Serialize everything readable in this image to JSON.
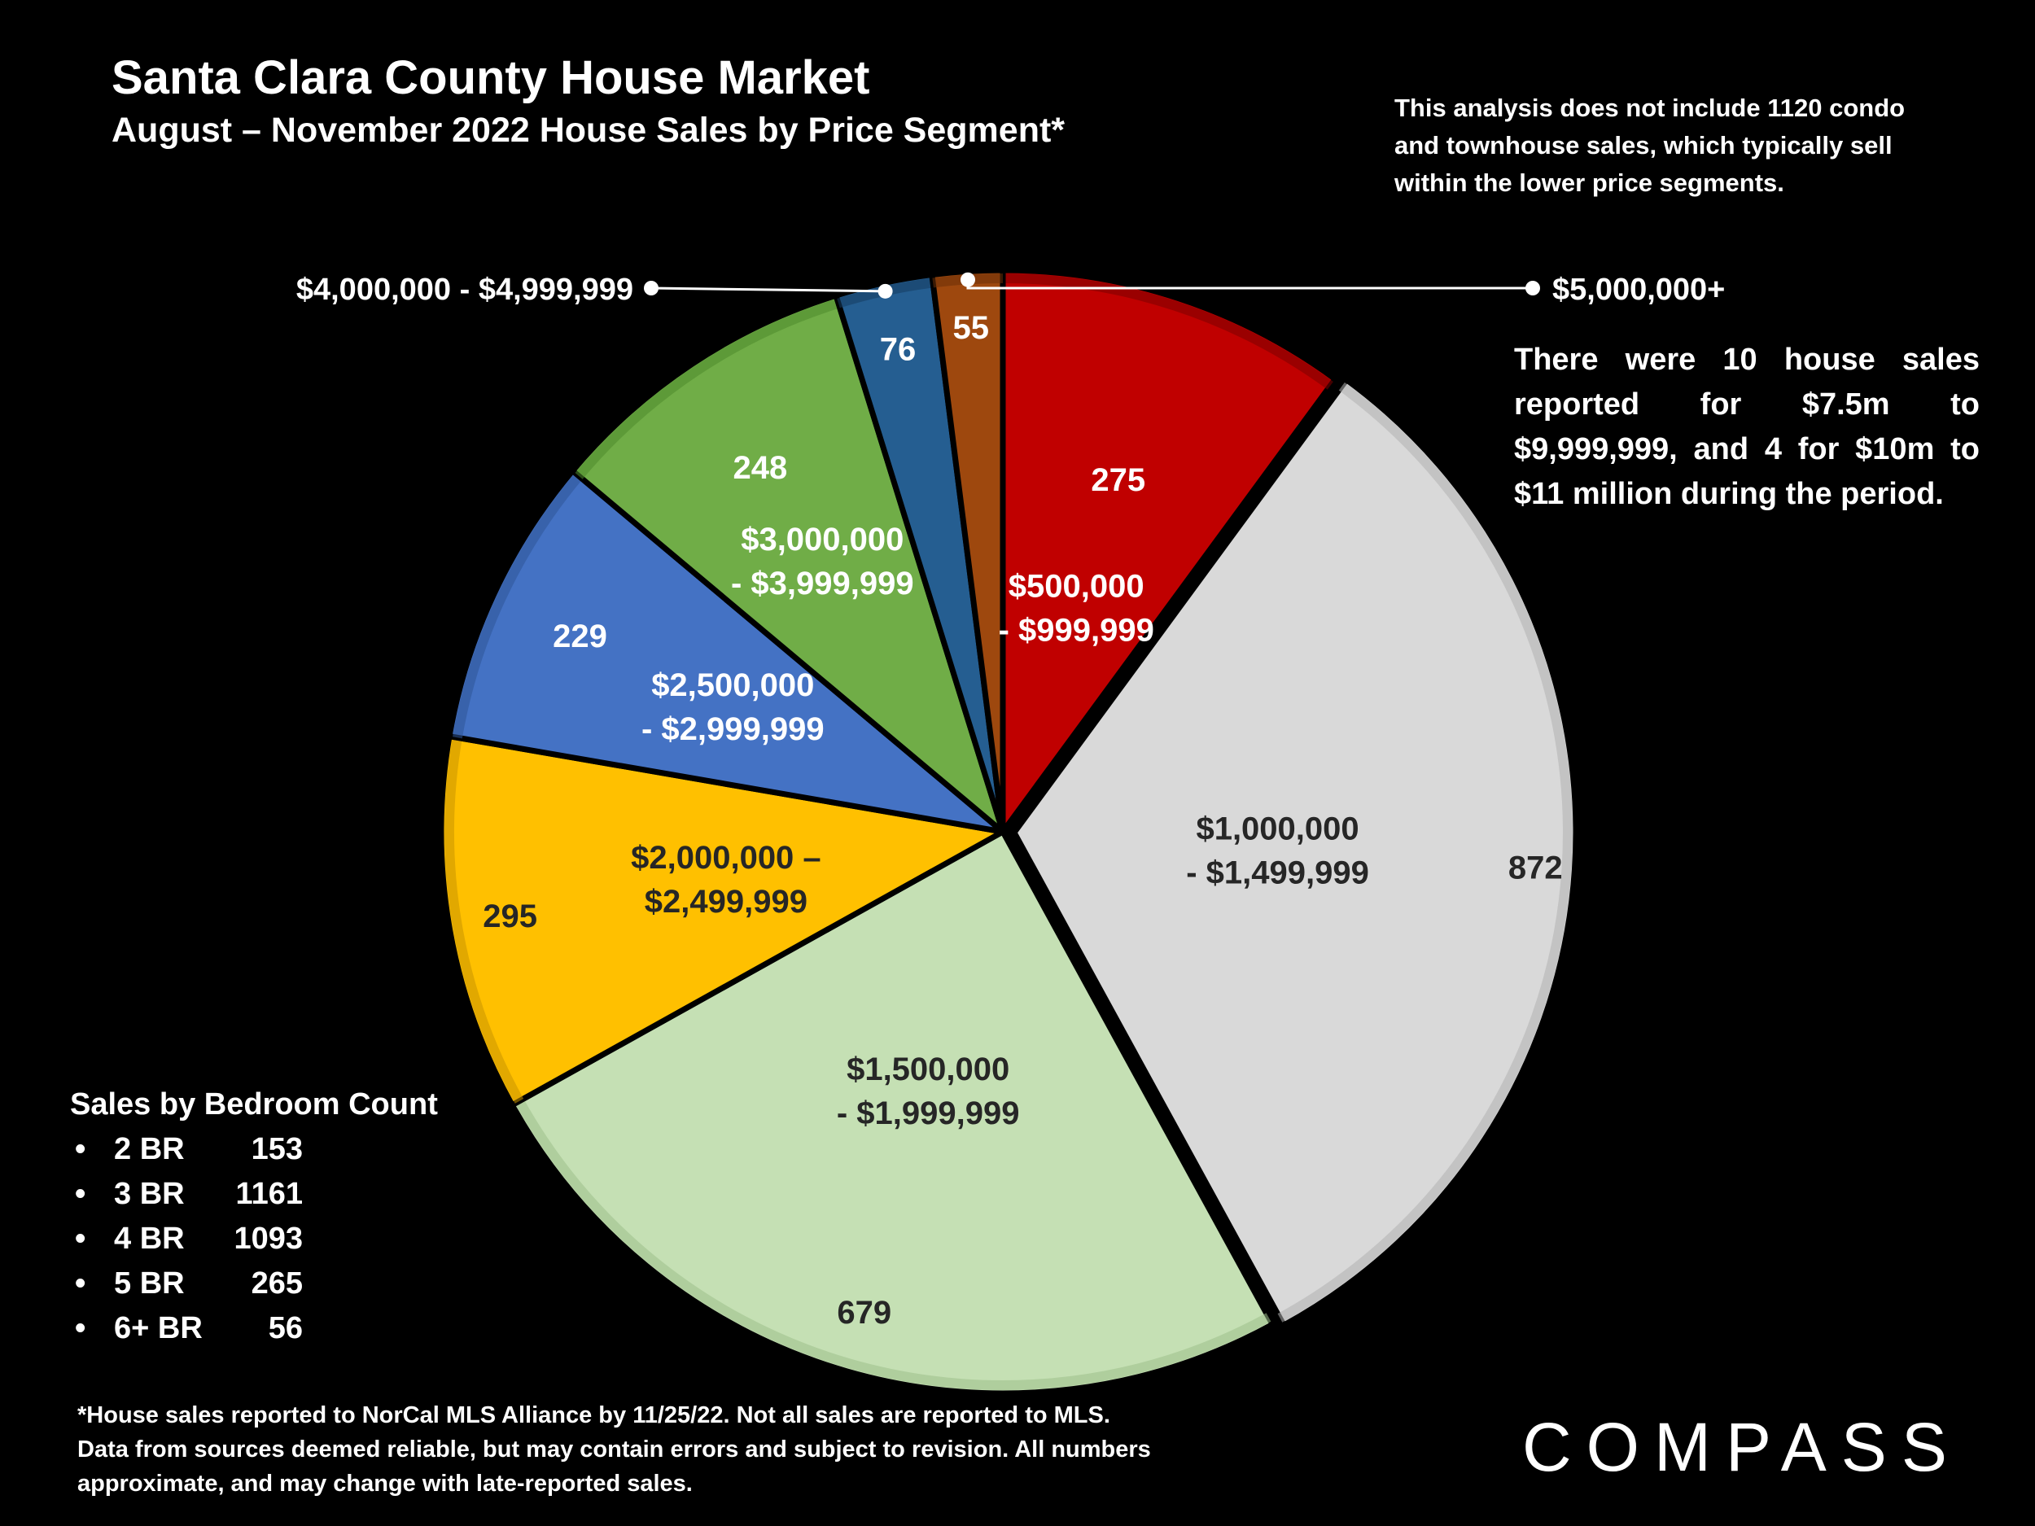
{
  "header": {
    "title": "Santa Clara County House Market",
    "subtitle": "August – November 2022 House Sales by Price Segment*"
  },
  "note": "This analysis does not include 1120 condo and townhouse sales, which typically sell within the lower price segments.",
  "side_note": {
    "main": "There were 10 house sales reported for $7.5m to $9,999,999, and 4 for $10m to",
    "last": "$11 million during the period."
  },
  "bedrooms": {
    "heading": "Sales by Bedroom Count",
    "items": [
      {
        "label": "2 BR",
        "count": "153"
      },
      {
        "label": "3 BR",
        "count": "1161"
      },
      {
        "label": "4 BR",
        "count": "1093"
      },
      {
        "label": "5 BR",
        "count": "265"
      },
      {
        "label": "6+ BR",
        "count": "56"
      }
    ]
  },
  "footnote": "*House sales reported to NorCal MLS Alliance by 11/25/22. Not all sales are reported to MLS. Data from sources deemed reliable, but may contain errors and subject to revision. All numbers approximate, and may change with late-reported sales.",
  "logo": "COMPASS",
  "chart_data": {
    "type": "pie",
    "title": "",
    "start": "top, clockwise",
    "slices": [
      {
        "label_lines": [
          "$500,000",
          "- $999,999"
        ],
        "value": 275,
        "color": "#C00000",
        "border": "#7a0000",
        "text_color": "#ffffff"
      },
      {
        "label_lines": [
          "$1,000,000",
          "- $1,499,999"
        ],
        "value": 872,
        "color": "#D9D9D9",
        "border": "#b0b0b0",
        "text_color": "#262626"
      },
      {
        "label_lines": [
          "$1,500,000",
          "- $1,999,999"
        ],
        "value": 679,
        "color": "#C5E0B4",
        "border": "#9dbf8a",
        "text_color": "#262626"
      },
      {
        "label_lines": [
          "$2,000,000 –",
          "$2,499,999"
        ],
        "value": 295,
        "color": "#FFC000",
        "border": "#c99400",
        "text_color": "#262626"
      },
      {
        "label_lines": [
          "$2,500,000",
          "- $2,999,999"
        ],
        "value": 229,
        "color": "#4472C4",
        "border": "#2f5597",
        "text_color": "#ffffff"
      },
      {
        "label_lines": [
          "$3,000,000",
          "- $3,999,999"
        ],
        "value": 248,
        "color": "#70AD47",
        "border": "#4e8a2c",
        "text_color": "#ffffff"
      },
      {
        "label_lines": [
          "$4,000,000 - $4,999,999"
        ],
        "value": 76,
        "color": "#255E91",
        "border": "#163d61",
        "text_color": "#ffffff",
        "callout": "left"
      },
      {
        "label_lines": [
          "$5,000,000+"
        ],
        "value": 55,
        "color": "#9E480E",
        "border": "#6b2f08",
        "text_color": "#ffffff",
        "callout": "right"
      }
    ]
  }
}
